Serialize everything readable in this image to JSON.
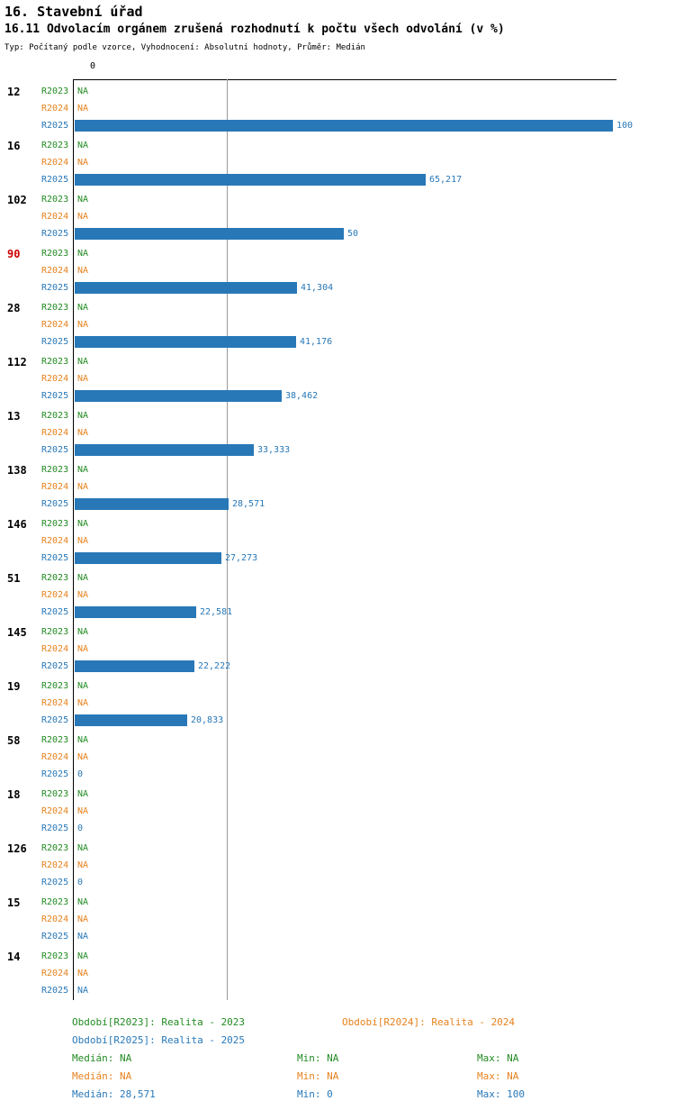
{
  "title": "16. Stavební úřad",
  "subtitle": "16.11 Odvolacím orgánem zrušená rozhodnutí k počtu všech odvolání (v %)",
  "meta": "Typ: Počítaný podle vzorce, Vyhodnocení: Absolutní hodnoty, Průměr: Medián",
  "axis": {
    "zero_label": "0"
  },
  "colors": {
    "green": "#228B22",
    "orange": "#E6821E",
    "blue": "#2878B8",
    "red": "#CC0000",
    "medianline": "#999999"
  },
  "chart_data": {
    "type": "bar",
    "orientation": "horizontal",
    "title": "16.11 Odvolacím orgánem zrušená rozhodnutí k počtu všech odvolání (v %)",
    "xlabel": "",
    "ylabel": "",
    "xlim": [
      0,
      100
    ],
    "median_line_value": 28.571,
    "grid": false,
    "legend_position": "bottom",
    "categories": [
      "12",
      "16",
      "102",
      "90",
      "28",
      "112",
      "13",
      "138",
      "146",
      "51",
      "145",
      "19",
      "58",
      "18",
      "126",
      "15",
      "14"
    ],
    "highlighted_categories": [
      "90"
    ],
    "series": [
      {
        "name": "R2023",
        "color_key": "green",
        "values": [
          null,
          null,
          null,
          null,
          null,
          null,
          null,
          null,
          null,
          null,
          null,
          null,
          null,
          null,
          null,
          null,
          null
        ],
        "display": [
          "NA",
          "NA",
          "NA",
          "NA",
          "NA",
          "NA",
          "NA",
          "NA",
          "NA",
          "NA",
          "NA",
          "NA",
          "NA",
          "NA",
          "NA",
          "NA",
          "NA"
        ]
      },
      {
        "name": "R2024",
        "color_key": "orange",
        "values": [
          null,
          null,
          null,
          null,
          null,
          null,
          null,
          null,
          null,
          null,
          null,
          null,
          null,
          null,
          null,
          null,
          null
        ],
        "display": [
          "NA",
          "NA",
          "NA",
          "NA",
          "NA",
          "NA",
          "NA",
          "NA",
          "NA",
          "NA",
          "NA",
          "NA",
          "NA",
          "NA",
          "NA",
          "NA",
          "NA"
        ]
      },
      {
        "name": "R2025",
        "color_key": "blue",
        "values": [
          100,
          65.217,
          50,
          41.304,
          41.176,
          38.462,
          33.333,
          28.571,
          27.273,
          22.581,
          22.222,
          20.833,
          0,
          0,
          0,
          null,
          null
        ],
        "display": [
          "100",
          "65,217",
          "50",
          "41,304",
          "41,176",
          "38,462",
          "33,333",
          "28,571",
          "27,273",
          "22,581",
          "22,222",
          "20,833",
          "0",
          "0",
          "0",
          "NA",
          "NA"
        ]
      }
    ]
  },
  "legend": {
    "r2023": "Období[R2023]: Realita - 2023",
    "r2024": "Období[R2024]: Realita - 2024",
    "r2025": "Období[R2025]: Realita - 2025",
    "stats": {
      "r2023": {
        "median": "Medián: NA",
        "min": "Min: NA",
        "max": "Max: NA"
      },
      "r2024": {
        "median": "Medián: NA",
        "min": "Min: NA",
        "max": "Max: NA"
      },
      "r2025": {
        "median": "Medián: 28,571",
        "min": "Min: 0",
        "max": "Max: 100"
      }
    }
  }
}
